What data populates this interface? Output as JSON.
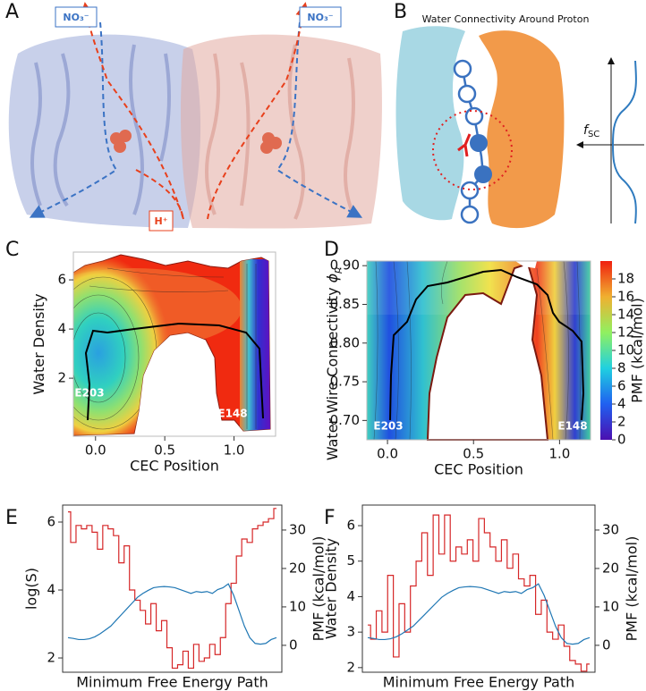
{
  "figure_a": {
    "panel": "A",
    "left_label": "NO₃⁻",
    "right_label": "NO₃⁻",
    "bottom_label": "H⁺"
  },
  "figure_b": {
    "panel": "B",
    "title": "Water Connectivity Around Proton",
    "axis_symbol": "f",
    "axis_subscript": "SC"
  },
  "chart_data": [
    {
      "type": "contour",
      "panel": "C",
      "xlabel": "CEC Position",
      "ylabel": "Water Density",
      "xlim": [
        -0.16,
        1.3
      ],
      "ylim": [
        -0.36,
        7.13
      ],
      "xticks": [
        {
          "value": 0,
          "label": "0.0"
        },
        {
          "value": 0.5,
          "label": "0.5"
        },
        {
          "value": 1,
          "label": "1.0"
        }
      ],
      "yticks": [
        2,
        4,
        6
      ],
      "annotations": [
        "E203",
        "E148"
      ]
    },
    {
      "type": "contour",
      "panel": "D",
      "xlabel": "CEC Position",
      "ylabel": "Water Wire Connectivity ",
      "ylabel_symbol": "ϕ",
      "ylabel_subscript": "p",
      "xlim": [
        -0.12,
        1.18
      ],
      "ylim": [
        0.675,
        0.906
      ],
      "xticks": [
        {
          "value": 0,
          "label": "0.0"
        },
        {
          "value": 0.5,
          "label": "0.5"
        },
        {
          "value": 1,
          "label": "1.0"
        }
      ],
      "yticks": [
        {
          "value": 0.7,
          "label": "0.70"
        },
        0.75,
        {
          "value": 0.8,
          "label": "0.80"
        },
        0.85,
        {
          "value": 0.9,
          "label": "0.90"
        }
      ],
      "annotations": [
        "E203",
        "E148"
      ],
      "colorbar": {
        "label": "PMF (kcal/mol)",
        "lim": [
          0,
          20
        ],
        "ticks": [
          0,
          2,
          4,
          6,
          8,
          10,
          12,
          14,
          16,
          18
        ]
      }
    },
    {
      "type": "step",
      "panel": "E",
      "xlabel": "Minimum Free Energy Path",
      "ylabel": "log(S)",
      "y2label": "PMF (kcal/mol)",
      "ylim": [
        1.58,
        6.5
      ],
      "yticks": [
        2,
        4,
        6
      ],
      "y2lim": [
        -7,
        36.5
      ],
      "y2ticks": [
        0,
        10,
        20,
        30
      ],
      "series": [
        {
          "color": "#d62728",
          "values": [
            6.3,
            5.4,
            5.9,
            5.8,
            5.9,
            5.7,
            5.2,
            5.9,
            5.8,
            5.6,
            4.8,
            5.3,
            4.0,
            3.7,
            3.4,
            3.0,
            3.6,
            2.8,
            3.1,
            2.3,
            1.7,
            1.8,
            2.2,
            1.7,
            2.4,
            1.9,
            2.0,
            2.4,
            2.1,
            2.6,
            3.6,
            4.2,
            5.0,
            5.5,
            5.4,
            5.8,
            5.9,
            6.0,
            6.1,
            6.4
          ]
        },
        {
          "color": "#1f77b4",
          "axis": "y2",
          "values": [
            2,
            1.8,
            1.5,
            1.5,
            1.7,
            2.2,
            3,
            4,
            5,
            6.5,
            8,
            9.5,
            11,
            12.5,
            13.5,
            14.3,
            15,
            15.2,
            15.3,
            15.2,
            15,
            14.5,
            14,
            13.5,
            14,
            13.8,
            14,
            13.5,
            14.5,
            15,
            16,
            13,
            9,
            5,
            2,
            0.5,
            0.3,
            0.5,
            1.5,
            2
          ]
        }
      ]
    },
    {
      "type": "step",
      "panel": "F",
      "xlabel": "Minimum Free Energy Path",
      "ylabel": "Water Density",
      "y2label": "PMF (kcal/mol)",
      "ylim": [
        1.87,
        6.58
      ],
      "yticks": [
        2,
        3,
        4,
        5,
        6
      ],
      "y2lim": [
        -7,
        36.5
      ],
      "y2ticks": [
        0,
        10,
        20,
        30
      ],
      "series": [
        {
          "color": "#d62728",
          "values": [
            3.2,
            2.8,
            3.6,
            3.0,
            4.6,
            2.3,
            3.8,
            3.0,
            4.3,
            5.0,
            5.8,
            4.6,
            6.3,
            5.2,
            6.3,
            5.0,
            5.4,
            5.2,
            5.6,
            5.0,
            6.2,
            5.8,
            5.4,
            5.0,
            5.6,
            4.8,
            5.2,
            4.5,
            4.3,
            4.6,
            3.5,
            3.9,
            3.0,
            2.8,
            3.2,
            2.6,
            2.2,
            2.1,
            1.9,
            2.1
          ]
        },
        {
          "color": "#1f77b4",
          "axis": "y2",
          "values": [
            2,
            1.8,
            1.5,
            1.5,
            1.7,
            2.2,
            3,
            4,
            5,
            6.5,
            8,
            9.5,
            11,
            12.5,
            13.5,
            14.3,
            15,
            15.2,
            15.3,
            15.2,
            15,
            14.5,
            14,
            13.5,
            14,
            13.8,
            14,
            13.5,
            14.5,
            15,
            16,
            13,
            9,
            5,
            2,
            0.5,
            0.3,
            0.5,
            1.5,
            2
          ]
        }
      ]
    }
  ]
}
